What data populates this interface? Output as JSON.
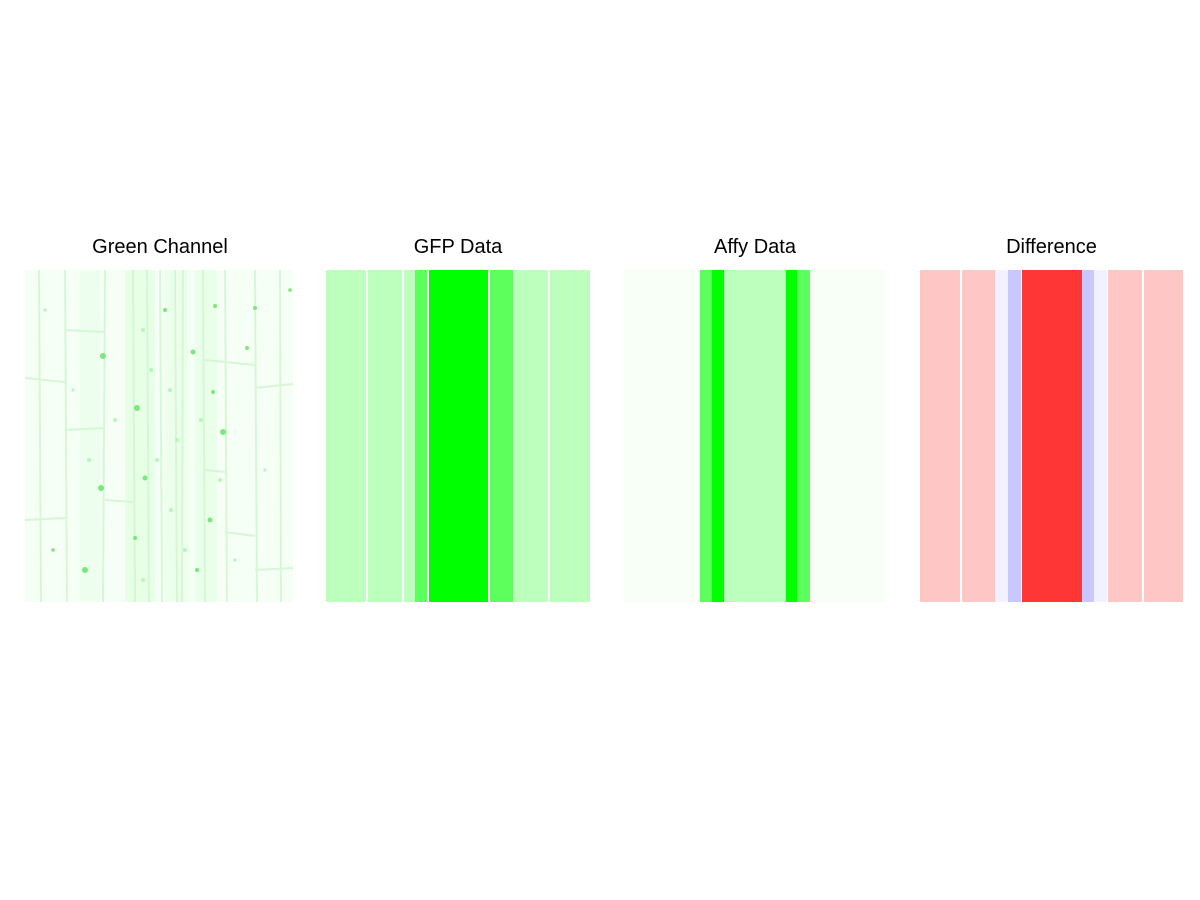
{
  "panels": [
    {
      "title": "Green Channel"
    },
    {
      "title": "GFP Data"
    },
    {
      "title": "Affy Data"
    },
    {
      "title": "Difference"
    }
  ],
  "colors": {
    "bright_green": "#00ff00",
    "medium_green": "#5cff5c",
    "light_green": "#bdffbd",
    "pale_green": "#f7fff7",
    "light_red": "#ffc6c6",
    "strong_red": "#ff3636",
    "light_blue": "#c8c8ff",
    "pale_blue": "#f1f1ff",
    "divider": "#ffffff"
  }
}
